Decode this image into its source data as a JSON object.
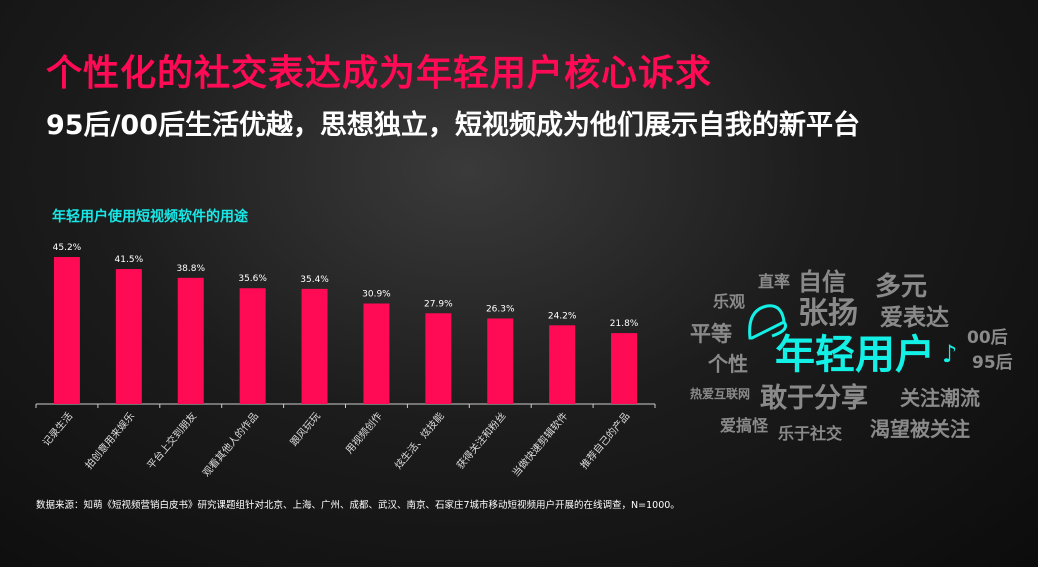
{
  "title": "个性化的社交表达成为年轻用户核心诉求",
  "subtitle": "95后/00后生活优越，思想独立，短视频成为他们展示自我的新平台",
  "footnote": "数据来源：知萌《短视频营销白皮书》研究课题组针对北京、上海、广州、成都、武汉、南京、石家庄7城市移动短视频用户开展的在线调查，N=1000。",
  "colors": {
    "title": "#ff0a54",
    "bar": "#ff0a54",
    "chart_title": "#18e8e8",
    "hero": "#13f0e6"
  },
  "chart_data": {
    "type": "bar",
    "title": "年轻用户使用短视频软件的用途",
    "categories": [
      "记录生活",
      "拍创意用来娱乐",
      "平台上交到朋友",
      "观看其他人的作品",
      "跟风玩玩",
      "用视频创作",
      "炫生活、炫技能",
      "获得关注和粉丝",
      "当做快速剪辑软件",
      "推荐自己的产品"
    ],
    "values": [
      45.2,
      41.5,
      38.8,
      35.6,
      35.4,
      30.9,
      27.9,
      26.3,
      24.2,
      21.8
    ],
    "labels": [
      "45.2%",
      "41.5%",
      "38.8%",
      "35.6%",
      "35.4%",
      "30.9%",
      "27.9%",
      "26.3%",
      "24.2%",
      "21.8%"
    ],
    "ylim": [
      0,
      50
    ],
    "grid": false
  },
  "cloud": {
    "hero": "年轻用户",
    "icons": [
      "cap-icon",
      "music-note-icon"
    ],
    "words": [
      "直率",
      "自信",
      "多元",
      "乐观",
      "张扬",
      "爱表达",
      "平等",
      "00后",
      "个性",
      "95后",
      "热爱互联网",
      "敢于分享",
      "关注潮流",
      "爱搞怪",
      "乐于社交",
      "渴望被关注"
    ]
  }
}
